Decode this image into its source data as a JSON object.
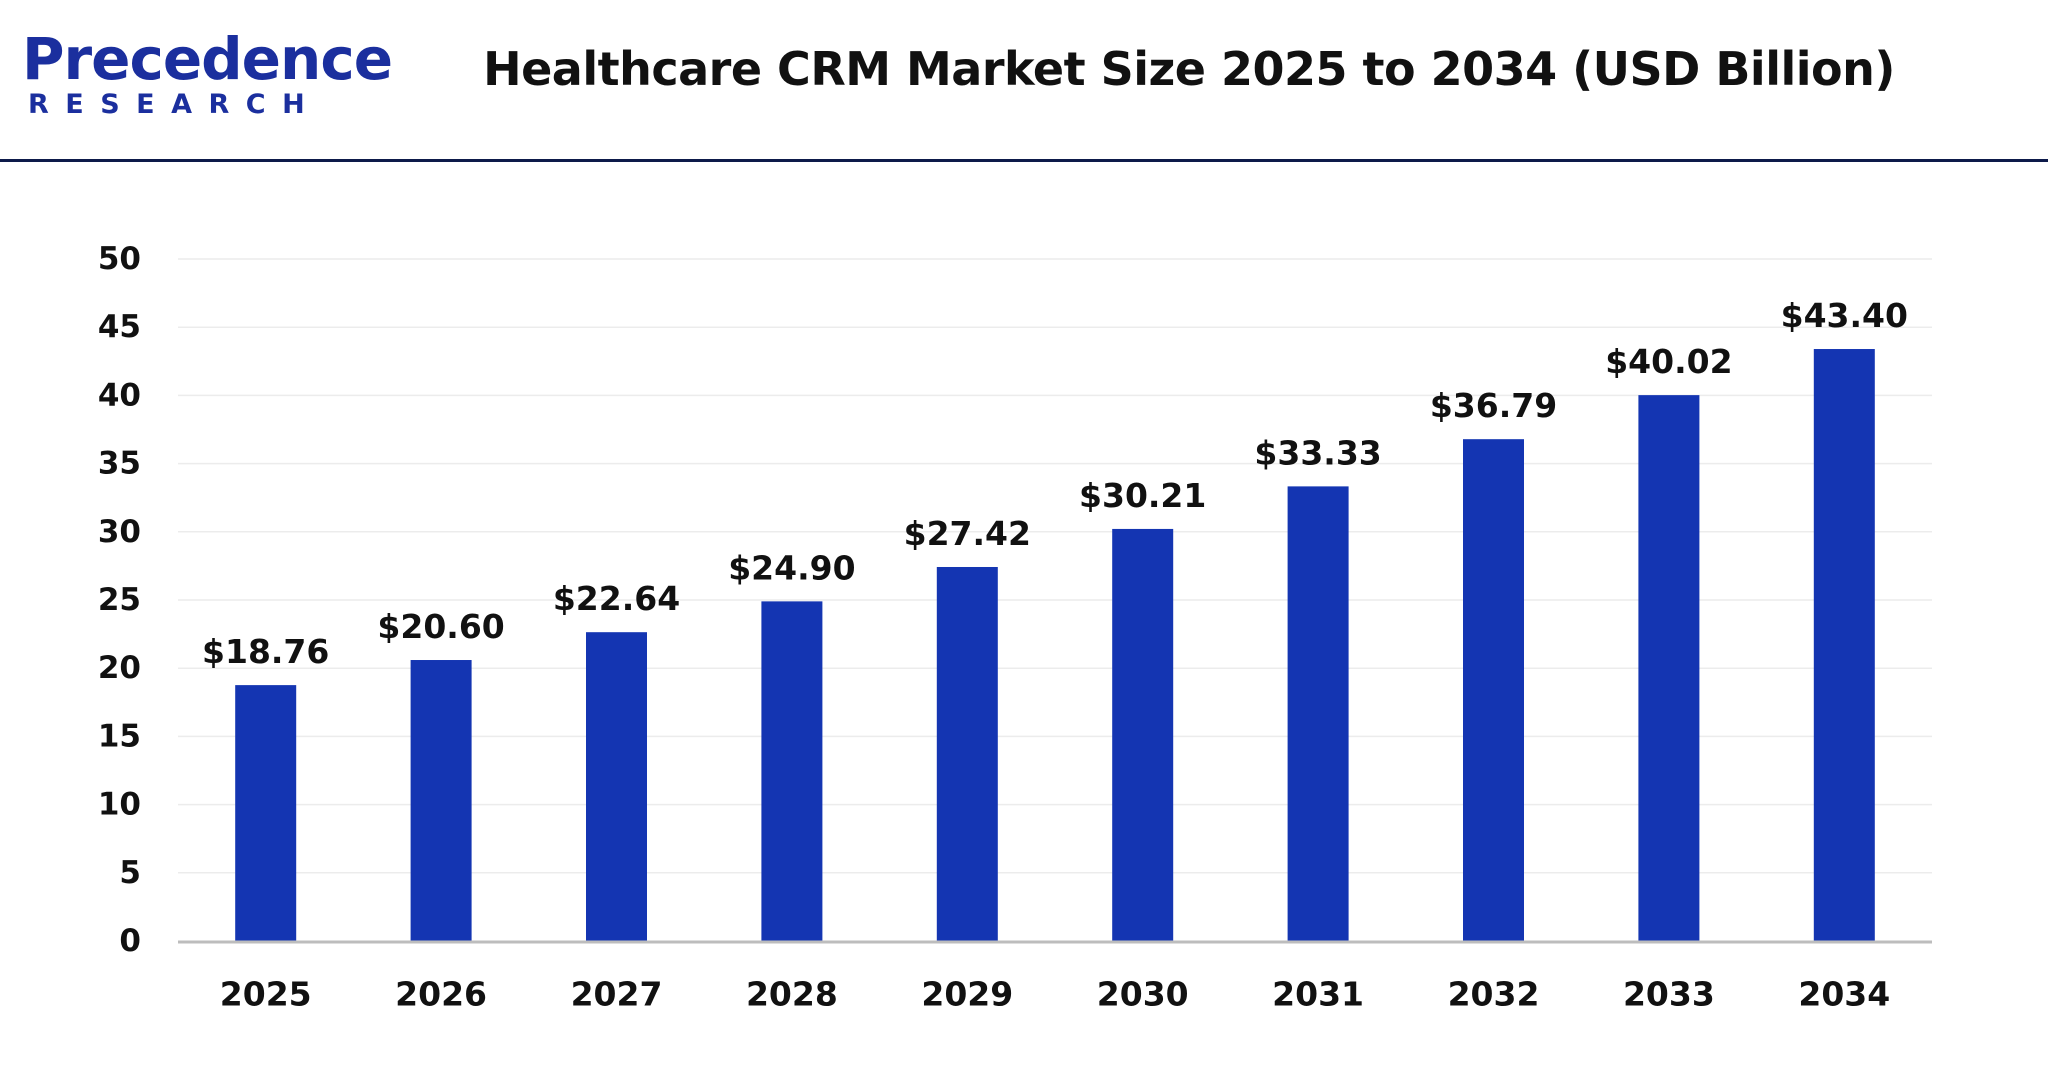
{
  "brand": {
    "logo_main": "Precedence",
    "logo_sub": "RESEARCH"
  },
  "colors": {
    "bar": "#1435b2",
    "header_rule": "#0d1a4a",
    "logo": "#1b2f9e"
  },
  "chart_data": {
    "type": "bar",
    "title": "Healthcare CRM Market Size 2025 to 2034 (USD Billion)",
    "xlabel": "",
    "ylabel": "",
    "categories": [
      "2025",
      "2026",
      "2027",
      "2028",
      "2029",
      "2030",
      "2031",
      "2032",
      "2033",
      "2034"
    ],
    "values": [
      18.76,
      20.6,
      22.64,
      24.9,
      27.42,
      30.21,
      33.33,
      36.79,
      40.02,
      43.4
    ],
    "value_labels": [
      "$18.76",
      "$20.60",
      "$22.64",
      "$24.90",
      "$27.42",
      "$30.21",
      "$33.33",
      "$36.79",
      "$40.02",
      "$43.40"
    ],
    "ylim": [
      0,
      50
    ],
    "yticks": [
      0,
      5,
      10,
      15,
      20,
      25,
      30,
      35,
      40,
      45,
      50
    ],
    "grid": true,
    "legend": "none"
  }
}
